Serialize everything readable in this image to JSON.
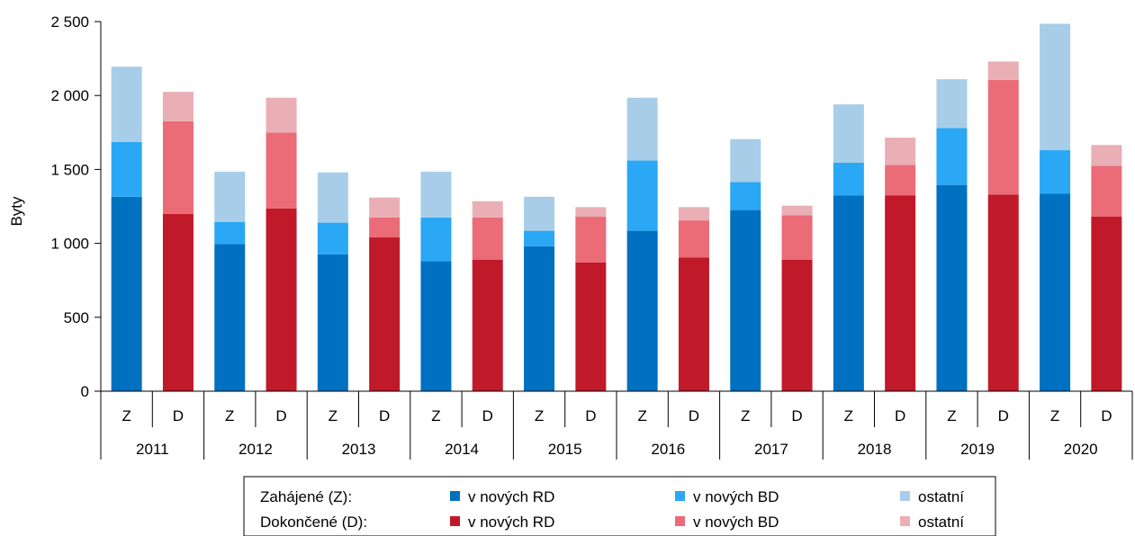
{
  "chart_data": {
    "type": "bar",
    "stacked": true,
    "ylabel": "Byty",
    "ylim": [
      0,
      2500
    ],
    "yticks": [
      0,
      500,
      1000,
      1500,
      2000,
      2500
    ],
    "ytick_labels": [
      "0",
      "500",
      "1 000",
      "1 500",
      "2 000",
      "2 500"
    ],
    "years": [
      "2011",
      "2012",
      "2013",
      "2014",
      "2015",
      "2016",
      "2017",
      "2018",
      "2019",
      "2020"
    ],
    "sub_labels": [
      "Z",
      "D"
    ],
    "groups": [
      {
        "key": "Z",
        "label": "Zahájené (Z):",
        "series": [
          {
            "name": "v nových RD",
            "color": "#0070C0",
            "values": [
              1315,
              995,
              925,
              880,
              980,
              1085,
              1225,
              1325,
              1395,
              1335
            ]
          },
          {
            "name": "v nových BD",
            "color": "#2AA7F5",
            "values": [
              370,
              150,
              215,
              295,
              105,
              475,
              190,
              220,
              385,
              295
            ]
          },
          {
            "name": "ostatní",
            "color": "#A8CDE8",
            "values": [
              510,
              340,
              340,
              310,
              230,
              425,
              290,
              395,
              330,
              855
            ]
          }
        ]
      },
      {
        "key": "D",
        "label": "Dokončené (D):",
        "series": [
          {
            "name": "v nových RD",
            "color": "#C0192A",
            "values": [
              1200,
              1235,
              1040,
              890,
              870,
              905,
              890,
              1325,
              1330,
              1180
            ]
          },
          {
            "name": "v nových BD",
            "color": "#EB6B77",
            "values": [
              625,
              515,
              135,
              285,
              310,
              250,
              300,
              205,
              775,
              345
            ]
          },
          {
            "name": "ostatní",
            "color": "#E9AFB5",
            "values": [
              200,
              235,
              135,
              110,
              65,
              90,
              65,
              185,
              125,
              140
            ]
          }
        ]
      }
    ]
  }
}
